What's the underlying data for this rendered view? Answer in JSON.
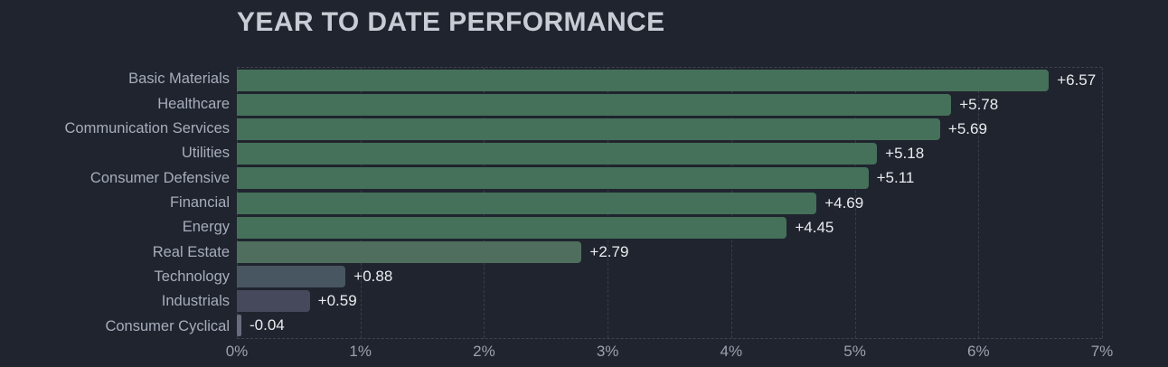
{
  "title": "YEAR TO DATE PERFORMANCE",
  "colors": {
    "background": "#20242e",
    "title": "#c7ccd5",
    "category_label": "#a6adbb",
    "value_label": "#e9ebef",
    "tick_label": "#9aa1ae",
    "gridline": "#373d4a",
    "positive_green": "#45705a",
    "muted_green": "#4f6e5d",
    "neutral_gray": "#475660",
    "slate_gray": "#45495b",
    "negative_gray": "#676d7e"
  },
  "chart_data": {
    "type": "bar",
    "orientation": "horizontal",
    "title": "YEAR TO DATE PERFORMANCE",
    "categories": [
      "Basic Materials",
      "Healthcare",
      "Communication Services",
      "Utilities",
      "Consumer Defensive",
      "Financial",
      "Energy",
      "Real Estate",
      "Technology",
      "Industrials",
      "Consumer Cyclical"
    ],
    "values": [
      6.57,
      5.78,
      5.69,
      5.18,
      5.11,
      4.69,
      4.45,
      2.79,
      0.88,
      0.59,
      -0.04
    ],
    "value_labels": [
      "+6.57",
      "+5.78",
      "+5.69",
      "+5.18",
      "+5.11",
      "+4.69",
      "+4.45",
      "+2.79",
      "+0.88",
      "+0.59",
      "-0.04"
    ],
    "bar_colors": [
      "#45705a",
      "#45705a",
      "#45705a",
      "#45705a",
      "#45705a",
      "#45705a",
      "#45705a",
      "#4f6e5d",
      "#475660",
      "#45495b",
      "#676d7e"
    ],
    "xlabel": "",
    "ylabel": "",
    "xlim": [
      0,
      7
    ],
    "x_tick_labels": [
      "0%",
      "1%",
      "2%",
      "3%",
      "4%",
      "5%",
      "6%",
      "7%"
    ],
    "grid": "vertical-dashed",
    "legend": "none",
    "value_label_position": "outside-end"
  }
}
